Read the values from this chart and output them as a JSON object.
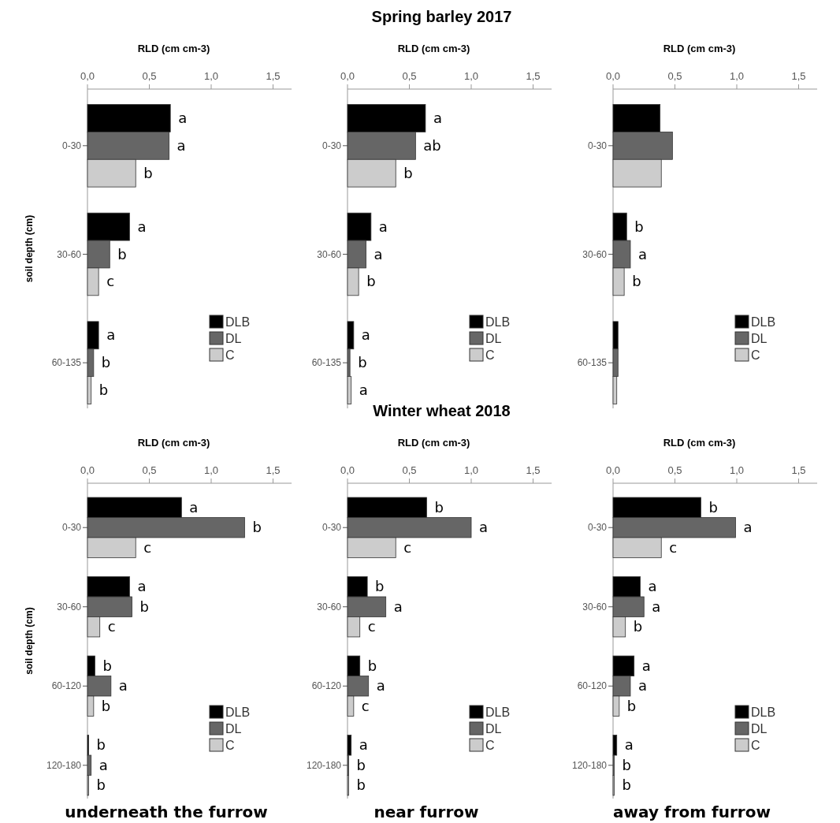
{
  "chart_data": [
    {
      "type": "bar",
      "orientation": "horizontal",
      "xlabel": "RLD (cm cm-3)",
      "ylabel": "soil depth (cm)",
      "categories": [
        "0-30",
        "30-60",
        "60-135"
      ],
      "xlim": [
        0,
        1.65
      ],
      "xticks": [
        {
          "value": 0,
          "label": "0,0"
        },
        {
          "value": 0.5,
          "label": "0,5"
        },
        {
          "value": 1,
          "label": "1,0"
        },
        {
          "value": 1.5,
          "label": "1,5"
        }
      ],
      "legend": "bottom right",
      "series": [
        {
          "name": "DLB",
          "color": "#000000",
          "values": [
            0.67,
            0.34,
            0.09
          ],
          "value_labels": [
            "a",
            "a",
            "a"
          ]
        },
        {
          "name": "DL",
          "color": "#666666",
          "values": [
            0.66,
            0.18,
            0.05
          ],
          "value_labels": [
            "a",
            "b",
            "b"
          ]
        },
        {
          "name": "C",
          "color": "#cccccc",
          "values": [
            0.39,
            0.09,
            0.03
          ],
          "value_labels": [
            "b",
            "c",
            "b"
          ]
        }
      ]
    },
    {
      "type": "bar",
      "orientation": "horizontal",
      "title": "Spring barley 2017",
      "xlabel": "RLD (cm cm-3)",
      "categories": [
        "0-30",
        "30-60",
        "60-135"
      ],
      "xlim": [
        0,
        1.65
      ],
      "xticks": [
        {
          "value": 0,
          "label": "0,0"
        },
        {
          "value": 0.5,
          "label": "0,5"
        },
        {
          "value": 1,
          "label": "1,0"
        },
        {
          "value": 1.5,
          "label": "1,5"
        }
      ],
      "legend": "bottom right",
      "series": [
        {
          "name": "DLB",
          "color": "#000000",
          "values": [
            0.63,
            0.19,
            0.05
          ],
          "value_labels": [
            "a",
            "a",
            "a"
          ]
        },
        {
          "name": "DL",
          "color": "#666666",
          "values": [
            0.55,
            0.15,
            0.02
          ],
          "value_labels": [
            "ab",
            "a",
            "b"
          ]
        },
        {
          "name": "C",
          "color": "#cccccc",
          "values": [
            0.39,
            0.09,
            0.03
          ],
          "value_labels": [
            "b",
            "b",
            "a"
          ]
        }
      ]
    },
    {
      "type": "bar",
      "orientation": "horizontal",
      "xlabel": "RLD (cm cm-3)",
      "categories": [
        "0-30",
        "30-60",
        "60-135"
      ],
      "xlim": [
        0,
        1.65
      ],
      "xticks": [
        {
          "value": 0,
          "label": "0,0"
        },
        {
          "value": 0.5,
          "label": "0,5"
        },
        {
          "value": 1,
          "label": "1,0"
        },
        {
          "value": 1.5,
          "label": "1,5"
        }
      ],
      "legend": "bottom right",
      "series": [
        {
          "name": "DLB",
          "color": "#000000",
          "values": [
            0.38,
            0.11,
            0.04
          ],
          "value_labels": [
            null,
            "b",
            null
          ]
        },
        {
          "name": "DL",
          "color": "#666666",
          "values": [
            0.48,
            0.14,
            0.04
          ],
          "value_labels": [
            null,
            "a",
            null
          ]
        },
        {
          "name": "C",
          "color": "#cccccc",
          "values": [
            0.39,
            0.09,
            0.03
          ],
          "value_labels": [
            null,
            "b",
            null
          ]
        }
      ]
    },
    {
      "type": "bar",
      "orientation": "horizontal",
      "xlabel": "RLD (cm cm-3)",
      "ylabel": "soil depth (cm)",
      "annotations": [
        "underneath the furrow"
      ],
      "categories": [
        "0-30",
        "30-60",
        "60-120",
        "120-180"
      ],
      "xlim": [
        0,
        1.65
      ],
      "xticks": [
        {
          "value": 0,
          "label": "0,0"
        },
        {
          "value": 0.5,
          "label": "0,5"
        },
        {
          "value": 1,
          "label": "1,0"
        },
        {
          "value": 1.5,
          "label": "1,5"
        }
      ],
      "legend": "bottom right",
      "series": [
        {
          "name": "DLB",
          "color": "#000000",
          "values": [
            0.76,
            0.34,
            0.06,
            0.01
          ],
          "value_labels": [
            "a",
            "a",
            "b",
            "b"
          ]
        },
        {
          "name": "DL",
          "color": "#666666",
          "values": [
            1.27,
            0.36,
            0.19,
            0.03
          ],
          "value_labels": [
            "b",
            "b",
            "a",
            "a"
          ]
        },
        {
          "name": "C",
          "color": "#cccccc",
          "values": [
            0.39,
            0.1,
            0.05,
            0.01
          ],
          "value_labels": [
            "c",
            "c",
            "b",
            "b"
          ]
        }
      ]
    },
    {
      "type": "bar",
      "orientation": "horizontal",
      "title": "Winter wheat 2018",
      "xlabel": "RLD (cm cm-3)",
      "annotations": [
        "near furrow"
      ],
      "categories": [
        "0-30",
        "30-60",
        "60-120",
        "120-180"
      ],
      "xlim": [
        0,
        1.65
      ],
      "xticks": [
        {
          "value": 0,
          "label": "0,0"
        },
        {
          "value": 0.5,
          "label": "0,5"
        },
        {
          "value": 1,
          "label": "1,0"
        },
        {
          "value": 1.5,
          "label": "1,5"
        }
      ],
      "legend": "bottom right",
      "series": [
        {
          "name": "DLB",
          "color": "#000000",
          "values": [
            0.64,
            0.16,
            0.1,
            0.03
          ],
          "value_labels": [
            "b",
            "b",
            "b",
            "a"
          ]
        },
        {
          "name": "DL",
          "color": "#666666",
          "values": [
            1.0,
            0.31,
            0.17,
            0.01
          ],
          "value_labels": [
            "a",
            "a",
            "a",
            "b"
          ]
        },
        {
          "name": "C",
          "color": "#cccccc",
          "values": [
            0.39,
            0.1,
            0.05,
            0.01
          ],
          "value_labels": [
            "c",
            "c",
            "c",
            "b"
          ]
        }
      ]
    },
    {
      "type": "bar",
      "orientation": "horizontal",
      "xlabel": "RLD (cm cm-3)",
      "annotations": [
        "away from furrow"
      ],
      "categories": [
        "0-30",
        "30-60",
        "60-120",
        "120-180"
      ],
      "xlim": [
        0,
        1.65
      ],
      "xticks": [
        {
          "value": 0,
          "label": "0,0"
        },
        {
          "value": 0.5,
          "label": "0,5"
        },
        {
          "value": 1,
          "label": "1,0"
        },
        {
          "value": 1.5,
          "label": "1,5"
        }
      ],
      "legend": "bottom right",
      "series": [
        {
          "name": "DLB",
          "color": "#000000",
          "values": [
            0.71,
            0.22,
            0.17,
            0.03
          ],
          "value_labels": [
            "b",
            "a",
            "a",
            "a"
          ]
        },
        {
          "name": "DL",
          "color": "#666666",
          "values": [
            0.99,
            0.25,
            0.14,
            0.01
          ],
          "value_labels": [
            "a",
            "a",
            "a",
            "b"
          ]
        },
        {
          "name": "C",
          "color": "#cccccc",
          "values": [
            0.39,
            0.1,
            0.05,
            0.01
          ],
          "value_labels": [
            "c",
            "b",
            "b",
            "b"
          ]
        }
      ]
    }
  ]
}
